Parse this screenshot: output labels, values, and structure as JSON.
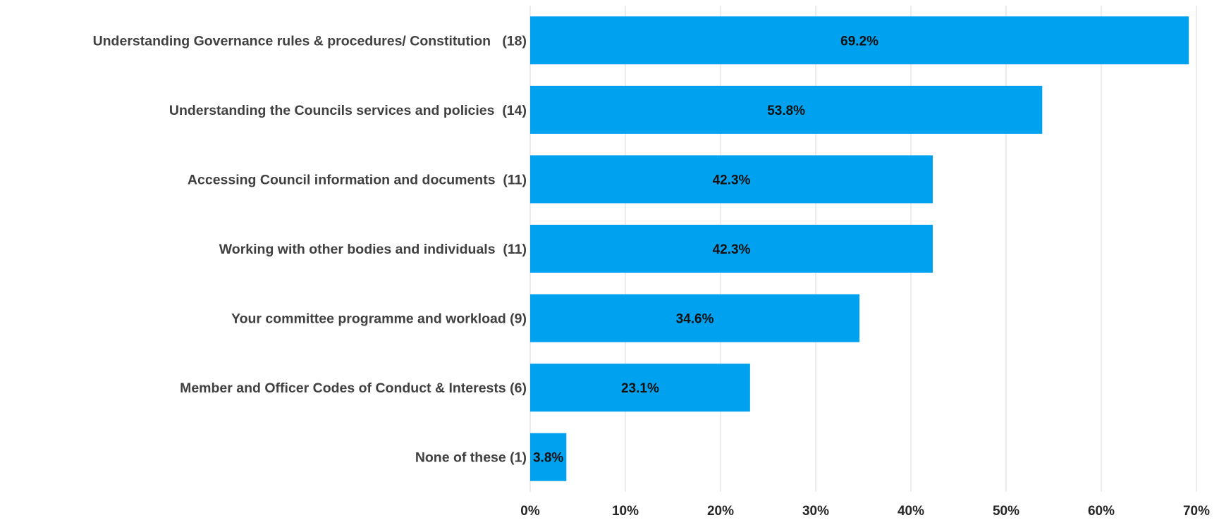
{
  "chart_data": {
    "type": "bar",
    "orientation": "horizontal",
    "categories": [
      "Understanding Governance rules & procedures/ Constitution   (18)",
      "Understanding the Councils services and policies  (14)",
      "Accessing Council information and documents  (11)",
      "Working with other bodies and individuals  (11)",
      "Your committee programme and workload (9)",
      "Member and Officer Codes of Conduct & Interests (6)",
      "None of these (1)"
    ],
    "values": [
      69.2,
      53.8,
      42.3,
      42.3,
      34.6,
      23.1,
      3.8
    ],
    "data_labels": [
      "69.2%",
      "53.8%",
      "42.3%",
      "42.3%",
      "34.6%",
      "23.1%",
      "3.8%"
    ],
    "x_ticks": [
      0,
      10,
      20,
      30,
      40,
      50,
      60,
      70
    ],
    "x_tick_labels": [
      "0%",
      "10%",
      "20%",
      "30%",
      "40%",
      "50%",
      "60%",
      "70%"
    ],
    "xlim": [
      0,
      70
    ],
    "unit": "%",
    "title": "",
    "xlabel": "",
    "ylabel": "",
    "grid": "vertical",
    "legend": "none",
    "colors": {
      "bar": "#00a2f0",
      "gridline": "#d9d9d9",
      "category_text": "#404040",
      "tick_text": "#262626",
      "data_label_text": "#111111"
    }
  }
}
